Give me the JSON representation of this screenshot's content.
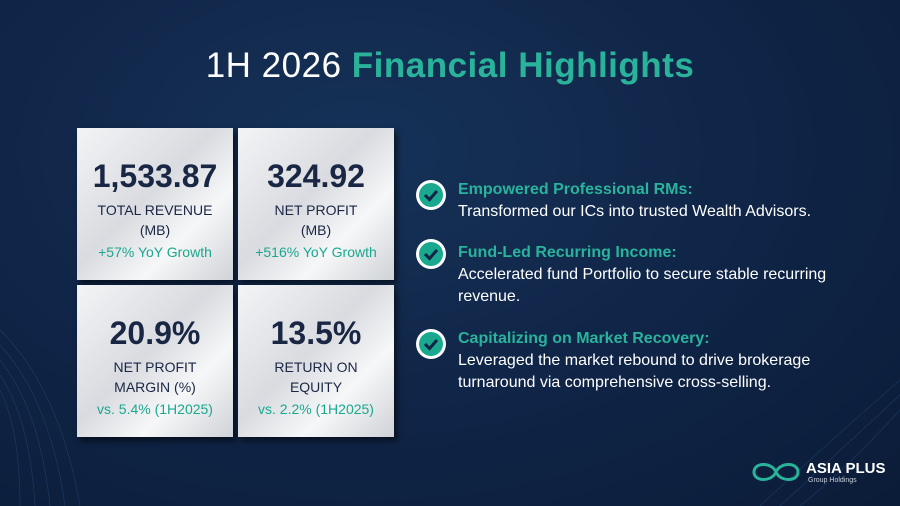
{
  "header": {
    "title_lead": "1H 2026",
    "title_highlight": "Financial Highlights"
  },
  "metrics": [
    {
      "value": "1,533.87",
      "label_lines": [
        "TOTAL REVENUE",
        "(MB)"
      ],
      "note": "+57% YoY Growth"
    },
    {
      "value": "324.92",
      "label_lines": [
        "NET PROFIT",
        "(MB)"
      ],
      "note": "+516% YoY Growth"
    },
    {
      "value": "20.9%",
      "label_lines": [
        "NET PROFIT",
        "MARGIN (%)"
      ],
      "note": "vs. 5.4% (1H2025)"
    },
    {
      "value": "13.5%",
      "label_lines": [
        "RETURN ON",
        "EQUITY"
      ],
      "note": "vs. 2.2% (1H2025)"
    }
  ],
  "highlights": [
    {
      "heading": "Empowered Professional RMs:",
      "text": "Transformed our ICs into trusted Wealth Advisors."
    },
    {
      "heading": "Fund-Led Recurring Income:",
      "text": "Accelerated fund Portfolio to secure stable recurring revenue."
    },
    {
      "heading": "Capitalizing on Market Recovery:",
      "text": "Leveraged the market rebound to drive brokerage turnaround via comprehensive cross-selling."
    }
  ],
  "logo": {
    "name": "ASIA PLUS",
    "tagline": "Group Holdings"
  }
}
